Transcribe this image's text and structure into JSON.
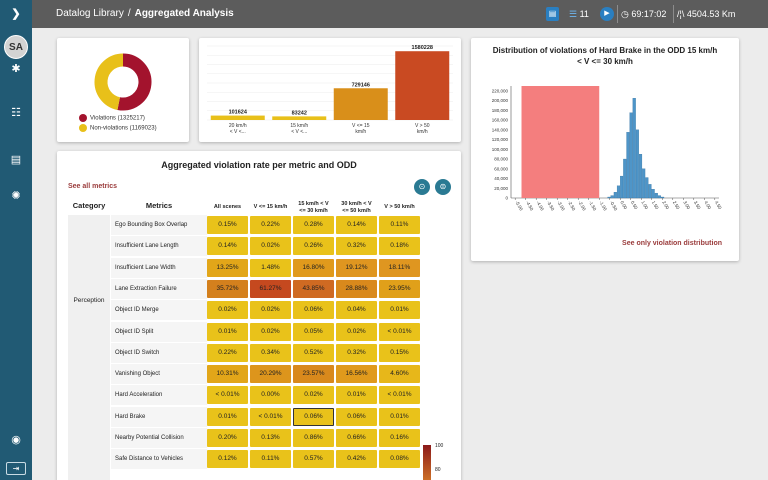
{
  "sidebar": {
    "toggle_glyph": "❯",
    "avatar_initials": "SA",
    "icons": [
      "gear-icon",
      "task-list-icon",
      "documents-icon",
      "bug-icon",
      "wifi-icon",
      "logout-icon"
    ]
  },
  "topbar": {
    "breadcrumb_root": "Datalog Library",
    "breadcrumb_sep": "/",
    "breadcrumb_current": "Aggregated Analysis",
    "scenario_count": "11",
    "duration": "69:17:02",
    "distance": "4504.53 Km"
  },
  "donut": {
    "legend": [
      {
        "label": "Violations (1325217)",
        "color": "#a3132d"
      },
      {
        "label": "Non-violations (1169023)",
        "color": "#e8c01a"
      }
    ],
    "chart_data": {
      "type": "pie",
      "values": [
        1325217,
        1169023
      ],
      "labels": [
        "Violations (1325217)",
        "Non-violations (1169023)"
      ],
      "colors": [
        "#a3132d",
        "#e8c01a"
      ]
    }
  },
  "bars": {
    "chart_data": {
      "type": "bar",
      "categories": [
        [
          "20 km/h",
          "< V <..."
        ],
        [
          "15 km/h",
          "< V <..."
        ],
        [
          "V <= 15",
          "km/h"
        ],
        [
          "V > 50",
          "km/h"
        ]
      ],
      "values": [
        101624,
        83242,
        729146,
        1580228
      ],
      "value_labels": [
        "101624",
        "83242",
        "729146",
        "1580228"
      ],
      "colors": [
        "#e8c01a",
        "#e8c01a",
        "#d98f1a",
        "#c94a22"
      ],
      "ylim": [
        0,
        1700000
      ],
      "grid": true
    }
  },
  "histogram": {
    "title_line1": "Distribution of violations of Hard Brake in the ODD 15 km/h",
    "title_line2": "< V <= 30 km/h",
    "link": "See only violation distribution",
    "chart_data": {
      "type": "bar",
      "yticks": [
        "0",
        "20,000",
        "40,000",
        "60,000",
        "80,000",
        "100,000",
        "120,000",
        "140,000",
        "160,000",
        "180,000",
        "200,000",
        "220,000"
      ],
      "ylim": [
        0,
        230000
      ],
      "xticks": [
        "-5.00",
        "-4.50",
        "-4.00",
        "-3.50",
        "-3.00",
        "-2.50",
        "-2.00",
        "-1.50",
        "-1.00",
        "-0.50",
        "0.00",
        "0.50",
        "1.00",
        "1.50",
        "2.00",
        "2.50",
        "3.00",
        "3.50",
        "4.00",
        "4.50"
      ],
      "xlim": [
        -5.2,
        4.7
      ],
      "violation_region": [
        -4.7,
        -1.0
      ],
      "violation_color": "#f47e7e",
      "bar_color": "#4e95c8",
      "bins": [
        {
          "x": -0.6,
          "y": 2000
        },
        {
          "x": -0.45,
          "y": 5000
        },
        {
          "x": -0.3,
          "y": 12000
        },
        {
          "x": -0.15,
          "y": 25000
        },
        {
          "x": 0.0,
          "y": 45000
        },
        {
          "x": 0.15,
          "y": 80000
        },
        {
          "x": 0.3,
          "y": 135000
        },
        {
          "x": 0.45,
          "y": 175000
        },
        {
          "x": 0.6,
          "y": 205000
        },
        {
          "x": 0.75,
          "y": 140000
        },
        {
          "x": 0.9,
          "y": 90000
        },
        {
          "x": 1.05,
          "y": 60000
        },
        {
          "x": 1.2,
          "y": 42000
        },
        {
          "x": 1.35,
          "y": 28000
        },
        {
          "x": 1.5,
          "y": 18000
        },
        {
          "x": 1.65,
          "y": 10000
        },
        {
          "x": 1.8,
          "y": 5000
        },
        {
          "x": 1.95,
          "y": 2000
        }
      ]
    }
  },
  "table": {
    "title": "Aggregated violation rate per metric and ODD",
    "see_all": "See all metrics",
    "headers": {
      "category": "Category",
      "metrics": "Metrics",
      "cols": [
        "All scenes",
        "V <= 15 km/h",
        "15 km/h < V\n<= 30 km/h",
        "30 km/h < V\n<= 50 km/h",
        "V > 50 km/h"
      ]
    },
    "category_perception": "Perception",
    "rows": [
      {
        "metric": "Ego Bounding Box Overlap",
        "values": [
          "0.15%",
          "0.22%",
          "0.28%",
          "0.14%",
          "0.11%"
        ]
      },
      {
        "metric": "Insufficient Lane Length",
        "values": [
          "0.14%",
          "0.02%",
          "0.26%",
          "0.32%",
          "0.18%"
        ]
      },
      {
        "metric": "Insufficient Lane Width",
        "values": [
          "13.25%",
          "1.48%",
          "16.80%",
          "19.12%",
          "18.11%"
        ]
      },
      {
        "metric": "Lane Extraction Failure",
        "values": [
          "35.72%",
          "61.27%",
          "43.85%",
          "28.88%",
          "23.95%"
        ]
      },
      {
        "metric": "Object ID Merge",
        "values": [
          "0.02%",
          "0.02%",
          "0.06%",
          "0.04%",
          "0.01%"
        ]
      },
      {
        "metric": "Object ID Split",
        "values": [
          "0.01%",
          "0.02%",
          "0.05%",
          "0.02%",
          "< 0.01%"
        ]
      },
      {
        "metric": "Object ID Switch",
        "values": [
          "0.22%",
          "0.34%",
          "0.52%",
          "0.32%",
          "0.15%"
        ]
      },
      {
        "metric": "Vanishing Object",
        "values": [
          "10.31%",
          "20.29%",
          "23.57%",
          "16.56%",
          "4.60%"
        ]
      },
      {
        "metric": "Hard Acceleration",
        "values": [
          "< 0.01%",
          "0.00%",
          "0.02%",
          "0.01%",
          "< 0.01%"
        ]
      },
      {
        "metric": "Hard Brake",
        "values": [
          "0.01%",
          "< 0.01%",
          "0.06%",
          "0.06%",
          "0.01%"
        ]
      },
      {
        "metric": "Nearby Potential Collision",
        "values": [
          "0.20%",
          "0.13%",
          "0.86%",
          "0.66%",
          "0.16%"
        ]
      },
      {
        "metric": "Safe Distance to Vehicles",
        "values": [
          "0.12%",
          "0.11%",
          "0.57%",
          "0.42%",
          "0.08%"
        ]
      }
    ],
    "cell_colors": [
      [
        "#e9c21a",
        "#e9c21a",
        "#e9c21a",
        "#e9c21a",
        "#e9c21a"
      ],
      [
        "#e9c21a",
        "#e9c21a",
        "#e9c21a",
        "#e9c21a",
        "#e9c21a"
      ],
      [
        "#e2a619",
        "#e9c21a",
        "#e09a1c",
        "#df9620",
        "#df9620"
      ],
      [
        "#d4801d",
        "#c5491f",
        "#cf6a22",
        "#d9891c",
        "#e0a01a"
      ],
      [
        "#e9c21a",
        "#e9c21a",
        "#e9c21a",
        "#e9c21a",
        "#e9c21a"
      ],
      [
        "#e9c21a",
        "#e9c21a",
        "#e9c21a",
        "#e9c21a",
        "#e9c21a"
      ],
      [
        "#e9c21a",
        "#e9c21a",
        "#e9c21a",
        "#e9c21a",
        "#e9c21a"
      ],
      [
        "#e2a619",
        "#dd951c",
        "#d9891c",
        "#e09a1c",
        "#e7b71a"
      ],
      [
        "#e9c21a",
        "#e9c21a",
        "#e9c21a",
        "#e9c21a",
        "#e9c21a"
      ],
      [
        "#e9c21a",
        "#e9c21a",
        "#e9c21a",
        "#e9c21a",
        "#e9c21a"
      ],
      [
        "#e9c21a",
        "#e9c21a",
        "#e9c21a",
        "#e9c21a",
        "#e9c21a"
      ],
      [
        "#e9c21a",
        "#e9c21a",
        "#e9c21a",
        "#e9c21a",
        "#e9c21a"
      ]
    ],
    "highlighted_cell": [
      9,
      2
    ],
    "colorbar_top": "100",
    "colorbar_mid": "80"
  }
}
